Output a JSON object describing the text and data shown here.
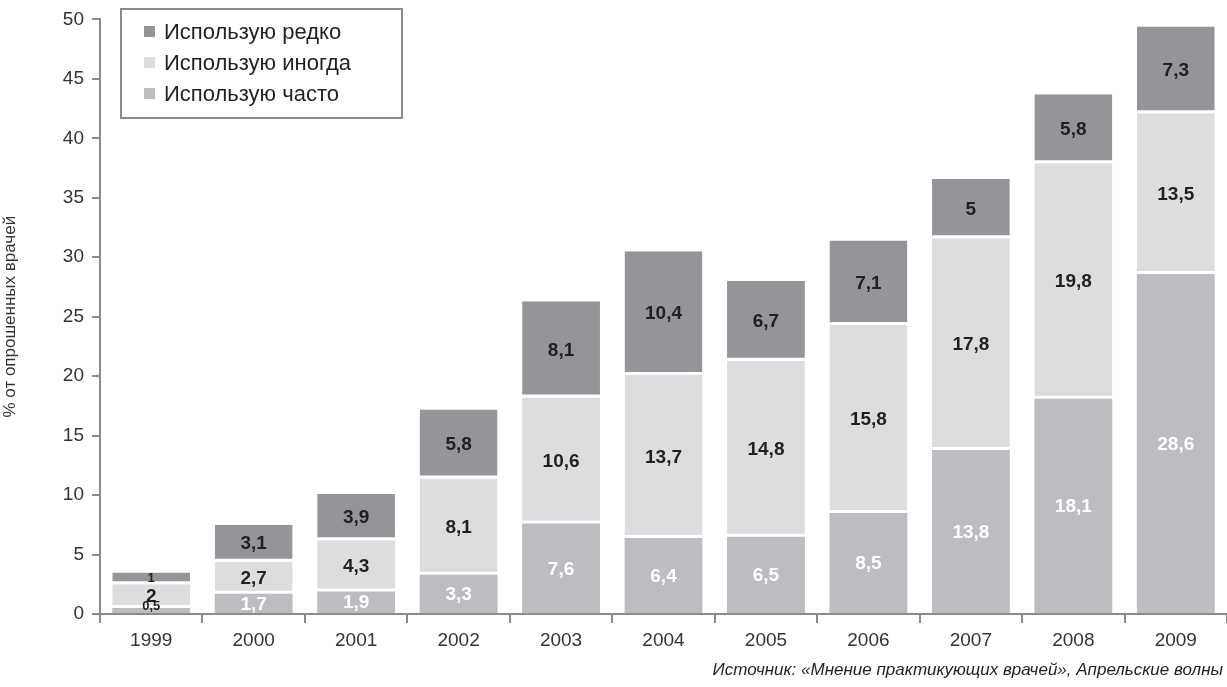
{
  "chart_data": {
    "type": "bar",
    "stacked": true,
    "ylabel": "% от опрошенных врачей",
    "categories": [
      "1999",
      "2000",
      "2001",
      "2002",
      "2003",
      "2004",
      "2005",
      "2006",
      "2007",
      "2008",
      "2009"
    ],
    "series": [
      {
        "name": "Использую часто",
        "color": "#bcbdc0",
        "values": [
          0.5,
          1.7,
          1.9,
          3.3,
          7.6,
          6.4,
          6.5,
          8.5,
          13.8,
          18.1,
          28.6
        ],
        "value_labels": [
          "0,5",
          "1,7",
          "1,9",
          "3,3",
          "7,6",
          "6,4",
          "6,5",
          "8,5",
          "13,8",
          "18,1",
          "28,6"
        ]
      },
      {
        "name": "Использую иногда",
        "color": "#dcdddf",
        "values": [
          2,
          2.7,
          4.3,
          8.1,
          10.6,
          13.7,
          14.8,
          15.8,
          17.8,
          19.8,
          13.5
        ],
        "value_labels": [
          "2",
          "2,7",
          "4,3",
          "8,1",
          "10,6",
          "13,7",
          "14,8",
          "15,8",
          "17,8",
          "19,8",
          "13,5"
        ]
      },
      {
        "name": "Использую редко",
        "color": "#939598",
        "values": [
          1,
          3.1,
          3.9,
          5.8,
          8.1,
          10.4,
          6.7,
          7.1,
          5,
          5.8,
          7.3
        ],
        "value_labels": [
          "1",
          "3,1",
          "3,9",
          "5,8",
          "8,1",
          "10,4",
          "6,7",
          "7,1",
          "5",
          "5,8",
          "7,3"
        ]
      }
    ],
    "ylim": [
      0,
      50
    ],
    "yticks": [
      0,
      5,
      10,
      15,
      20,
      25,
      30,
      35,
      40,
      45,
      50
    ],
    "legend": "top left",
    "annotations": [
      "Источник: «Мнение практикующих врачей», Апрельские волны"
    ]
  }
}
